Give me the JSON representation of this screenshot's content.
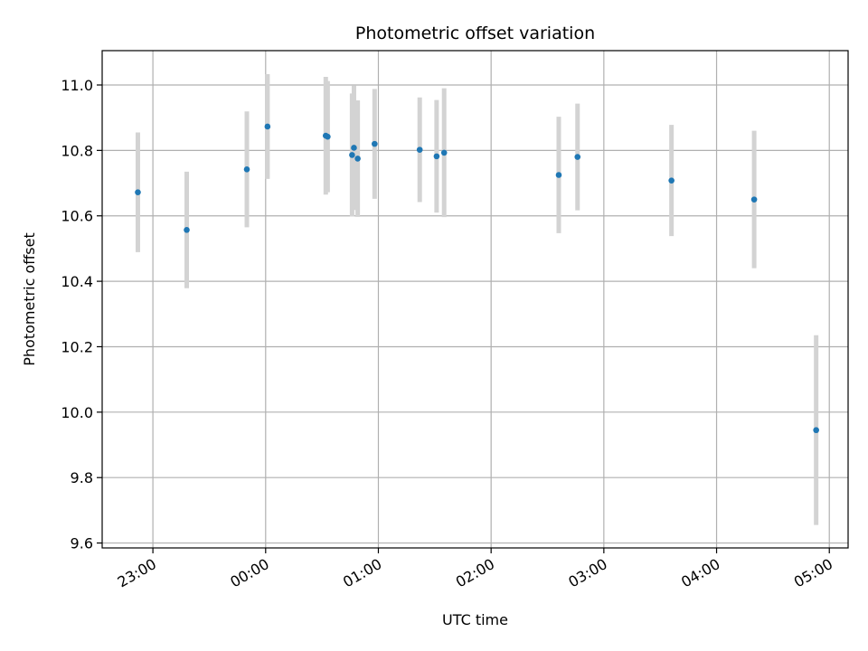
{
  "chart_data": {
    "type": "scatter",
    "title": "Photometric offset variation",
    "xlabel": "UTC time",
    "ylabel": "Photometric offset",
    "x_tick_labels": [
      "23:00",
      "00:00",
      "01:00",
      "02:00",
      "03:00",
      "04:00",
      "05:00"
    ],
    "xlim": [
      "22:33",
      "05:10"
    ],
    "y_ticks": [
      9.6,
      9.8,
      10.0,
      10.2,
      10.4,
      10.6,
      10.8,
      11.0
    ],
    "y_tick_labels": [
      "9.6",
      "9.8",
      "10.0",
      "10.2",
      "10.4",
      "10.6",
      "10.8",
      "11.0"
    ],
    "ylim": [
      9.585,
      11.105
    ],
    "grid": true,
    "colors": {
      "point": "#1f77b4",
      "errorbar": "#d3d3d3",
      "grid": "#b0b0b0"
    },
    "points": [
      {
        "x": "22:52",
        "y": 10.672,
        "yerr": 0.183
      },
      {
        "x": "23:18",
        "y": 10.557,
        "yerr": 0.178
      },
      {
        "x": "23:50",
        "y": 10.742,
        "yerr": 0.177
      },
      {
        "x": "00:01",
        "y": 10.873,
        "yerr": 0.16
      },
      {
        "x": "00:32",
        "y": 10.845,
        "yerr": 0.18
      },
      {
        "x": "00:33",
        "y": 10.842,
        "yerr": 0.17
      },
      {
        "x": "00:46",
        "y": 10.786,
        "yerr": 0.188
      },
      {
        "x": "00:47",
        "y": 10.808,
        "yerr": 0.19
      },
      {
        "x": "00:49",
        "y": 10.775,
        "yerr": 0.178
      },
      {
        "x": "00:58",
        "y": 10.82,
        "yerr": 0.168
      },
      {
        "x": "01:22",
        "y": 10.802,
        "yerr": 0.16
      },
      {
        "x": "01:31",
        "y": 10.782,
        "yerr": 0.172
      },
      {
        "x": "01:35",
        "y": 10.793,
        "yerr": 0.197
      },
      {
        "x": "02:36",
        "y": 10.725,
        "yerr": 0.178
      },
      {
        "x": "02:46",
        "y": 10.78,
        "yerr": 0.163
      },
      {
        "x": "03:36",
        "y": 10.708,
        "yerr": 0.17
      },
      {
        "x": "04:20",
        "y": 10.65,
        "yerr": 0.21
      },
      {
        "x": "04:53",
        "y": 9.945,
        "yerr": 0.29
      }
    ]
  }
}
